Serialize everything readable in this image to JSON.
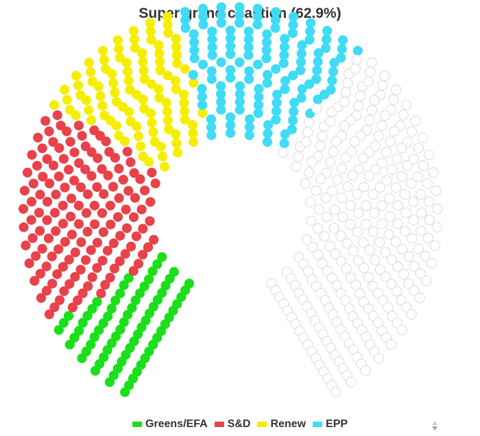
{
  "chart_data": {
    "type": "parliament",
    "title": "Super grand coalition (62.9%)",
    "total_seats": 705,
    "series": [
      {
        "name": "Greens/EFA",
        "seats": 73,
        "color": "#1adf1a"
      },
      {
        "name": "S&D",
        "seats": 145,
        "color": "#e8424a"
      },
      {
        "name": "Renew",
        "seats": 98,
        "color": "#f5ee00"
      },
      {
        "name": "EPP",
        "seats": 127,
        "color": "#40dbf5"
      }
    ],
    "other_seats": {
      "seats": 262,
      "color": "#eeeeee"
    },
    "legend_position": "bottom-center"
  }
}
